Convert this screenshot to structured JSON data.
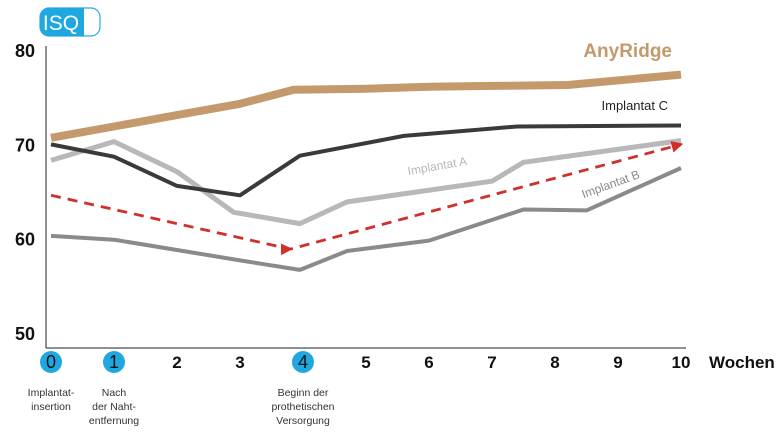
{
  "chart_data": {
    "type": "line",
    "ylabel": "ISQ",
    "xunit": "Wochen",
    "ylim": [
      50,
      80
    ],
    "yticks": [
      "50",
      "60",
      "70",
      "80"
    ],
    "x": [
      0,
      1,
      2,
      3,
      4,
      5,
      6,
      7,
      8,
      9,
      10
    ],
    "xtick_labels": [
      "0",
      "1",
      "2",
      "3",
      "4",
      "5",
      "6",
      "7",
      "8",
      "9",
      "10"
    ],
    "highlighted_x": [
      0,
      1,
      4
    ],
    "x_annotations": [
      {
        "x": 0,
        "lines": [
          "Implantat-",
          "insertion"
        ]
      },
      {
        "x": 1,
        "lines": [
          "Nach",
          "der Naht-",
          "entfernung"
        ]
      },
      {
        "x": 4,
        "lines": [
          "Beginn der",
          "prothetischen",
          "Versorgung"
        ]
      }
    ],
    "series": [
      {
        "name": "AnyRidge",
        "color": "#c49a6c",
        "style": "solid",
        "points": [
          [
            0,
            70.8
          ],
          [
            1,
            72.0
          ],
          [
            2,
            73.2
          ],
          [
            3,
            74.4
          ],
          [
            3.85,
            75.9
          ],
          [
            5,
            76.0
          ],
          [
            6,
            76.2
          ],
          [
            7,
            76.3
          ],
          [
            8.2,
            76.4
          ],
          [
            10,
            77.5
          ]
        ]
      },
      {
        "name": "Implantat C",
        "color": "#3a3a3a",
        "style": "solid",
        "points": [
          [
            0,
            70.1
          ],
          [
            1,
            68.8
          ],
          [
            2,
            65.7
          ],
          [
            3,
            64.7
          ],
          [
            3.95,
            68.9
          ],
          [
            5.6,
            71.0
          ],
          [
            7.4,
            72.0
          ],
          [
            10,
            72.1
          ]
        ]
      },
      {
        "name": "Implantat A",
        "color": "#b8b8b8",
        "style": "solid",
        "points": [
          [
            0,
            68.4
          ],
          [
            1,
            70.4
          ],
          [
            2,
            67.2
          ],
          [
            2.9,
            62.9
          ],
          [
            3.95,
            61.7
          ],
          [
            4.7,
            64.0
          ],
          [
            7,
            66.2
          ],
          [
            7.5,
            68.2
          ],
          [
            10,
            70.5
          ]
        ]
      },
      {
        "name": "Implantat B",
        "color": "#8a8a8a",
        "style": "solid",
        "points": [
          [
            0,
            60.4
          ],
          [
            1,
            60.0
          ],
          [
            2,
            58.9
          ],
          [
            3,
            57.8
          ],
          [
            3.95,
            56.8
          ],
          [
            4.7,
            58.8
          ],
          [
            6,
            59.9
          ],
          [
            7,
            62.1
          ],
          [
            7.5,
            63.2
          ],
          [
            8.5,
            63.1
          ],
          [
            10,
            67.6
          ]
        ]
      },
      {
        "name": "",
        "color": "#d0302a",
        "style": "dashed",
        "points": [
          [
            0,
            64.7
          ],
          [
            3.8,
            59.0
          ],
          [
            10,
            70.1
          ]
        ]
      }
    ]
  }
}
